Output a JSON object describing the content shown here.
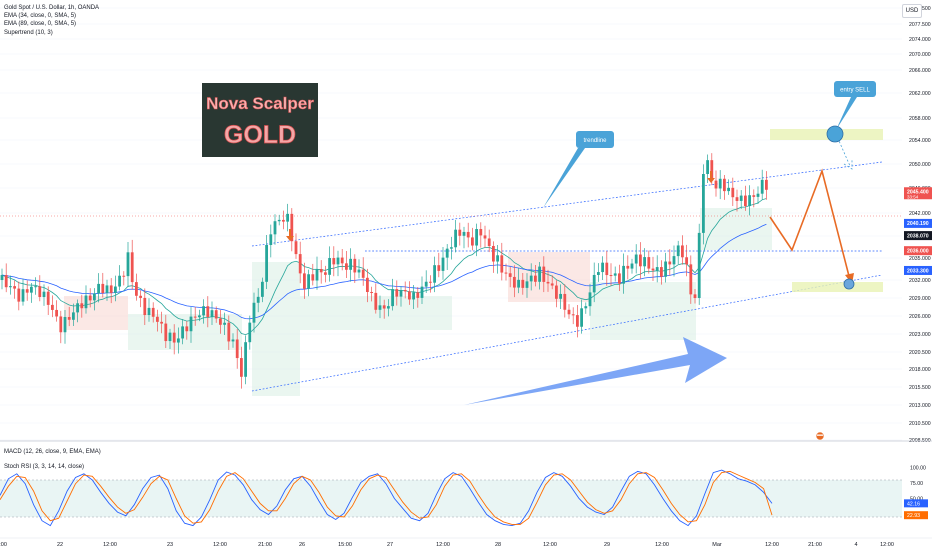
{
  "header": {
    "symbol": "Gold Spot / U.S. Dollar, 1h, OANDA",
    "indicators": [
      "EMA (34, close, 0, SMA, 5)",
      "EMA (89, close, 0, SMA, 5)",
      "Supertrend (10, 3)"
    ],
    "currency": "USD"
  },
  "brand": {
    "line1": "Nova Scalper",
    "line2": "GOLD"
  },
  "annotations": {
    "trendline": "trendline",
    "entry": "entry SELL"
  },
  "oscillators": {
    "macd": "MACD (12, 26, close, 9, EMA, EMA)",
    "stoch": "Stoch RSI (3, 3, 14, 14, close)"
  },
  "colors": {
    "up": "#26a69a",
    "down": "#ef5350",
    "ema34": "#26a69a",
    "ema89": "#2962ff",
    "projection": "#e86b25",
    "zone": "#e8f2b4",
    "arrow": "#6f9cf5",
    "callout": "#4aa3d8"
  },
  "chart_data": [
    {
      "type": "candlestick",
      "title": "Gold Spot / U.S. Dollar, 1h, OANDA",
      "y_axis_ticks": [
        2080.5,
        2077.5,
        2074.0,
        2070.0,
        2066.0,
        2062.0,
        2058.0,
        2054.0,
        2050.0,
        2046.0,
        2042.0,
        2038.0,
        2035.0,
        2032.0,
        2029.0,
        2026.0,
        2023.0,
        2020.5,
        2018.0,
        2015.5,
        2013.0,
        2010.5,
        2008.5
      ],
      "ylim": [
        2008.0,
        2082.0
      ],
      "x_tick_labels": [
        "12:00",
        "22",
        "12:00",
        "23",
        "12:00",
        "21:00",
        "26",
        "15:00",
        "27",
        "12:00",
        "28",
        "12:00",
        "29",
        "12:00",
        "Mar",
        "12:00",
        "21:00",
        "4",
        "12:00"
      ],
      "price_labels": {
        "last": 2045.4,
        "last_sub": "33:54",
        "ema_short": 2040.19,
        "level": 2038.07,
        "ema_mid": 2036.0,
        "ema_long": 2033.3
      },
      "projection_path": [
        2046.0,
        2039.0,
        2051.0,
        2032.5
      ],
      "entry_zone": [
        2056.0,
        2057.5
      ],
      "target_zone": [
        2032.0,
        2033.0
      ],
      "projection_ticks": [
        "entry SELL"
      ]
    },
    {
      "type": "line",
      "title": "Stoch RSI (3, 3, 14, 14, close)",
      "y_axis_ticks": [
        100.0,
        75.0,
        50.0,
        25.0
      ],
      "ylim": [
        0,
        100
      ],
      "levels": [
        80,
        20
      ],
      "current_values": [
        42.16,
        22.93
      ],
      "current_labels": [
        "42.16",
        "22.93"
      ],
      "series": [
        {
          "name": "%K",
          "values": [
            55,
            82,
            90,
            74,
            40,
            14,
            6,
            30,
            62,
            84,
            90,
            80,
            60,
            42,
            28,
            22,
            40,
            66,
            84,
            88,
            66,
            30,
            10,
            6,
            20,
            48,
            80,
            93,
            88,
            72,
            48,
            32,
            24,
            38,
            64,
            82,
            86,
            70,
            46,
            24,
            16,
            26,
            52,
            76,
            86,
            90,
            74,
            50,
            34,
            18,
            14,
            26,
            56,
            82,
            92,
            86,
            66,
            44,
            24,
            14,
            8,
            6,
            10,
            30,
            60,
            84,
            92,
            86,
            70,
            50,
            36,
            28,
            24,
            36,
            62,
            86,
            94,
            90,
            72,
            50,
            30,
            14,
            6,
            22,
            58,
            92,
            96,
            90,
            82,
            78,
            72,
            60,
            42
          ]
        },
        {
          "name": "%D",
          "values": [
            48,
            70,
            86,
            84,
            62,
            30,
            14,
            18,
            46,
            74,
            88,
            86,
            70,
            52,
            36,
            26,
            32,
            52,
            74,
            86,
            80,
            50,
            22,
            10,
            12,
            32,
            62,
            86,
            92,
            82,
            62,
            42,
            30,
            30,
            50,
            74,
            86,
            80,
            60,
            36,
            22,
            20,
            38,
            64,
            82,
            88,
            84,
            64,
            44,
            28,
            18,
            20,
            40,
            70,
            88,
            90,
            78,
            56,
            36,
            20,
            12,
            8,
            8,
            18,
            44,
            72,
            88,
            90,
            80,
            62,
            44,
            32,
            26,
            30,
            48,
            74,
            90,
            92,
            84,
            64,
            42,
            24,
            12,
            14,
            40,
            76,
            92,
            94,
            88,
            82,
            76,
            66,
            23
          ]
        }
      ]
    }
  ]
}
